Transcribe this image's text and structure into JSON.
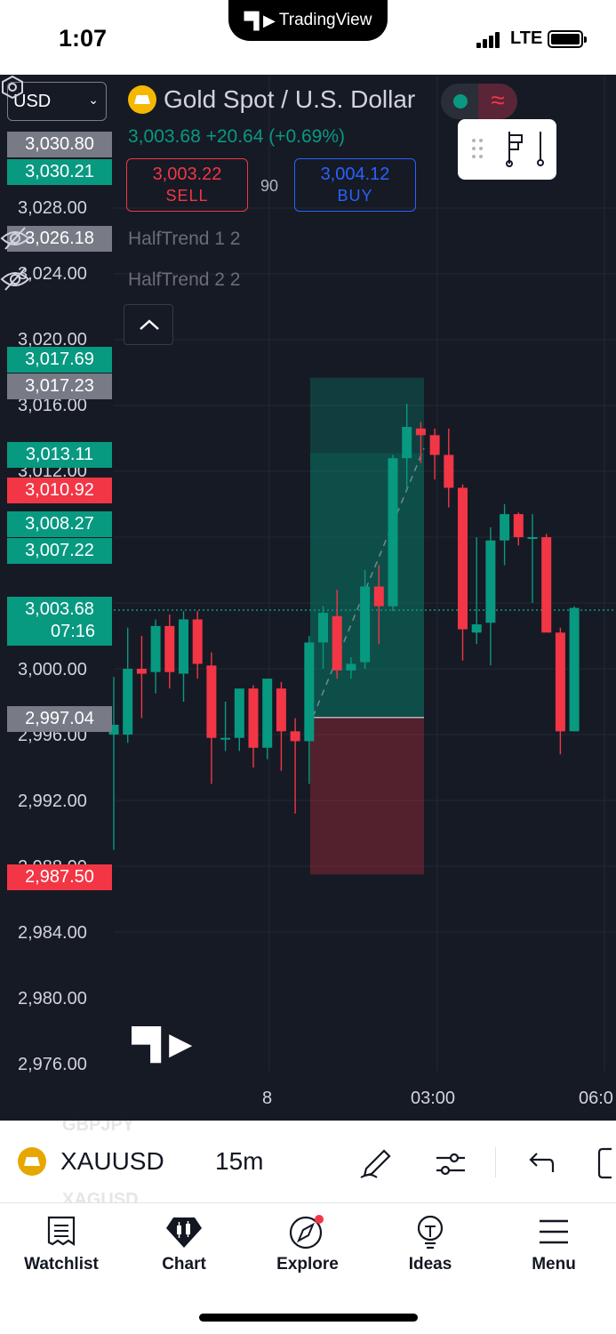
{
  "status_bar": {
    "time": "1:07",
    "app_pill_label": "TradingView",
    "network": "LTE"
  },
  "chart": {
    "currency_selector": "USD",
    "symbol_title": "Gold Spot / U.S. Dollar",
    "quote_line": "3,003.68 +20.64 (+0.69%)",
    "sell": {
      "price": "3,003.22",
      "label": "SELL"
    },
    "spread": "90",
    "buy": {
      "price": "3,004.12",
      "label": "BUY"
    },
    "indicators": [
      "HalfTrend 1 2",
      "HalfTrend 2 2"
    ],
    "price_axis": [
      "3,028.00",
      "3,024.00",
      "3,020.00",
      "3,016.00",
      "3,012.00",
      "3,000.00",
      "2,996.00",
      "2,992.00",
      "2,988.00",
      "2,984.00",
      "2,980.00",
      "2,976.00"
    ],
    "price_tags": {
      "t3030_80": "3,030.80",
      "t3030_21": "3,030.21",
      "t3026_18": "3,026.18",
      "t3017_69": "3,017.69",
      "t3017_23": "3,017.23",
      "t3013_11": "3,013.11",
      "t3010_92": "3,010.92",
      "t3008_27": "3,008.27",
      "t3007_22": "3,007.22",
      "current_price": "3,003.68",
      "countdown": "07:16",
      "t2997_04": "2,997.04",
      "t2987_50": "2,987.50"
    },
    "time_axis": [
      "8",
      "03:00",
      "06:0"
    ],
    "colors": {
      "up": "#089981",
      "down": "#f23645",
      "background": "#161a25",
      "accent": "#2962ff"
    }
  },
  "symbol_bar": {
    "prev_symbol": "GBPJPY",
    "symbol": "XAUUSD",
    "next_symbol": "XAGUSD",
    "interval": "15m",
    "icons": [
      "draw-pen-icon",
      "indicator-sliders-icon",
      "undo-icon",
      "fullscreen-icon"
    ]
  },
  "tab_bar": {
    "tabs": [
      {
        "label": "Watchlist",
        "icon": "watchlist-icon"
      },
      {
        "label": "Chart",
        "icon": "chart-icon"
      },
      {
        "label": "Explore",
        "icon": "compass-icon"
      },
      {
        "label": "Ideas",
        "icon": "lightbulb-icon"
      },
      {
        "label": "Menu",
        "icon": "hamburger-icon"
      }
    ]
  }
}
